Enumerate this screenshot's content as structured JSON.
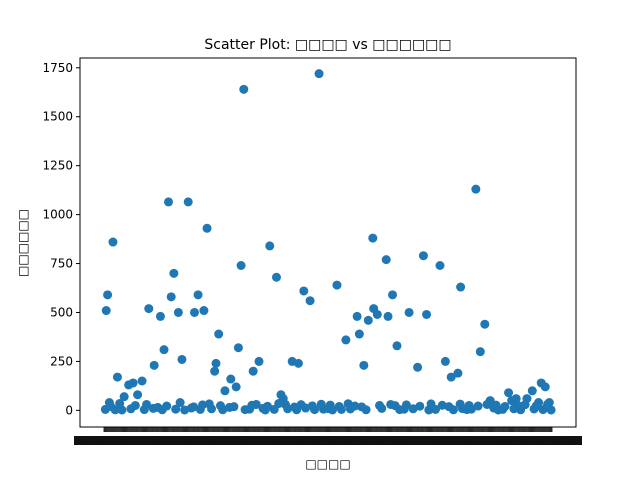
{
  "chart_data": {
    "type": "scatter",
    "title": "Scatter Plot: □□□□ vs □□□□□□",
    "xlabel": "□□□□",
    "ylabel": "□□□□□□",
    "ylim": [
      -85,
      1800
    ],
    "y_ticks": [
      0,
      250,
      500,
      750,
      1000,
      1250,
      1500,
      1750
    ],
    "y_tick_labels": [
      "0",
      "250",
      "500",
      "750",
      "1000",
      "1250",
      "1500",
      "1750"
    ],
    "x_tick_labels_note": "overlapping, illegible category tick labels",
    "marker_color": "#1f77b4",
    "grid": false,
    "legend": "none",
    "x_range": [
      0,
      100
    ],
    "series": [
      {
        "x": [
          0.5,
          0.8,
          1.2,
          2.0,
          3.0,
          4.5,
          5.5,
          6.5,
          7.5,
          8.5,
          10.0,
          11.2,
          12.6,
          13.4,
          14.4,
          15.0,
          15.6,
          16.6,
          17.4,
          18.8,
          20.2,
          21.0,
          22.3,
          23.0,
          24.7,
          25.0,
          25.6,
          27.0,
          28.3,
          29.5,
          30.0,
          30.6,
          31.2,
          33.3,
          34.6,
          37.0,
          38.5,
          39.5,
          40.0,
          40.5,
          42.0,
          43.4,
          44.6,
          46.0,
          48.0,
          52.0,
          54.0,
          56.5,
          57.0,
          58.0,
          59.0,
          60.0,
          60.2,
          61.0,
          63.0,
          63.4,
          64.4,
          65.4,
          68.1,
          70.0,
          71.3,
          72.0,
          75.0,
          76.2,
          77.5,
          79.0,
          79.6,
          83.0,
          84.0,
          85.0,
          86.2,
          90.3,
          91.0,
          92.0,
          94.4,
          95.6,
          97.0,
          97.6,
          98.5,
          99.4,
          0.3,
          2.5,
          4.0,
          6.0,
          9.0,
          11.0,
          13.0,
          16.0,
          18.0,
          19.5,
          21.5,
          24.0,
          26.5,
          28.0,
          31.5,
          32.5,
          35.5,
          36.0,
          38.0,
          41.0,
          43.0,
          45.0,
          47.0,
          49.0,
          50.0,
          51.0,
          53.0,
          55.0,
          58.5,
          62.0,
          66.0,
          67.0,
          69.0,
          72.5,
          74.0,
          78.0,
          80.0,
          81.0,
          82.0,
          87.0,
          88.0,
          89.0,
          91.5,
          93.0,
          96.0,
          98.0,
          99.8,
          1.5,
          3.5,
          7.0,
          9.5,
          12.0,
          14.0,
          17.0,
          20.0,
          22.0,
          23.5,
          26.0,
          29.0,
          33.0,
          34.0,
          36.5,
          39.0,
          42.5,
          44.0,
          46.5,
          48.5,
          50.5,
          52.5,
          54.5,
          56.0,
          57.5,
          61.5,
          64.0,
          65.0,
          67.5,
          70.5,
          73.0,
          75.5,
          77.0,
          79.5,
          81.5,
          83.5,
          85.5,
          87.5,
          89.5,
          92.5,
          94.0,
          96.5,
          99.0
        ],
        "y": [
          510,
          590,
          40,
          860,
          170,
          70,
          130,
          140,
          80,
          150,
          520,
          230,
          480,
          310,
          1065,
          580,
          700,
          500,
          260,
          1065,
          500,
          590,
          510,
          930,
          200,
          240,
          390,
          100,
          160,
          120,
          320,
          740,
          1640,
          200,
          250,
          840,
          680,
          80,
          60,
          30,
          250,
          240,
          610,
          560,
          1720,
          640,
          360,
          480,
          390,
          230,
          460,
          880,
          520,
          490,
          770,
          480,
          590,
          330,
          500,
          220,
          790,
          490,
          740,
          250,
          170,
          190,
          630,
          1130,
          300,
          440,
          50,
          90,
          50,
          60,
          60,
          100,
          40,
          140,
          120,
          40,
          5,
          3,
          2,
          8,
          4,
          10,
          3,
          6,
          2,
          12,
          5,
          8,
          3,
          15,
          4,
          6,
          10,
          2,
          5,
          8,
          3,
          12,
          4,
          6,
          9,
          2,
          5,
          7,
          3,
          10,
          4,
          6,
          8,
          2,
          5,
          3,
          9,
          4,
          6,
          12,
          2,
          5,
          8,
          3,
          7,
          4,
          2,
          20,
          35,
          25,
          30,
          15,
          22,
          40,
          18,
          28,
          33,
          24,
          19,
          26,
          30,
          21,
          35,
          17,
          29,
          23,
          31,
          27,
          20,
          34,
          22,
          18,
          25,
          30,
          24,
          28,
          21,
          33,
          26,
          19,
          32,
          25,
          22,
          30,
          27,
          20,
          24,
          29,
          23,
          31
        ]
      }
    ]
  }
}
